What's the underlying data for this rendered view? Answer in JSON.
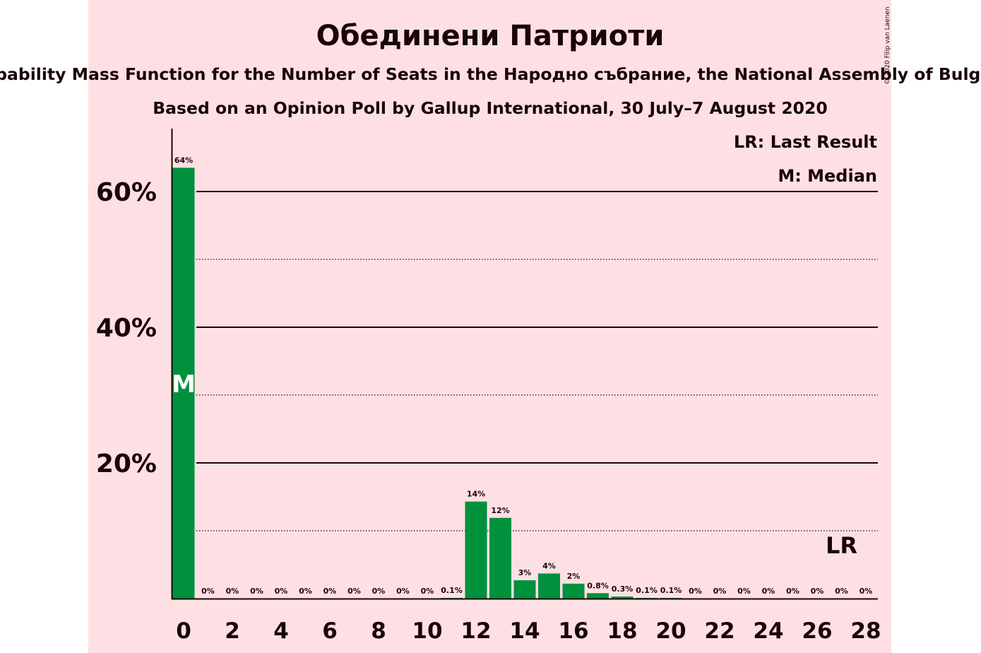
{
  "chart_data": {
    "type": "bar",
    "title": "Обединени Патриоти",
    "subtitle": "Probability Mass Function for the Number of Seats in the Народно събрание, the National Assembly of Bulgaria",
    "subtitle2": "Based on an Opinion Poll by Gallup International, 30 July–7 August 2020",
    "copyright": "© 2020 Filip van Laenen",
    "legend": {
      "last_result": "LR: Last Result",
      "median": "M: Median",
      "placement": "top-right"
    },
    "xlabel": "",
    "ylabel": "",
    "ylim": [
      0,
      70
    ],
    "y_ticks": [
      "20%",
      "40%",
      "60%"
    ],
    "x_ticks": [
      "0",
      "2",
      "4",
      "6",
      "8",
      "10",
      "12",
      "14",
      "16",
      "18",
      "20",
      "22",
      "24",
      "26",
      "28"
    ],
    "color": "#00913d",
    "median_marker": {
      "seat": 0,
      "label": "M"
    },
    "last_result_marker": {
      "seat": 27,
      "label": "LR"
    },
    "seats": [
      0,
      1,
      2,
      3,
      4,
      5,
      6,
      7,
      8,
      9,
      10,
      11,
      12,
      13,
      14,
      15,
      16,
      17,
      18,
      19,
      20,
      21,
      22,
      23,
      24,
      25,
      26,
      27,
      28
    ],
    "values": [
      63.5,
      0,
      0,
      0,
      0,
      0,
      0,
      0,
      0,
      0,
      0,
      0.1,
      14.3,
      11.9,
      2.7,
      3.7,
      2.2,
      0.8,
      0.3,
      0.1,
      0.1,
      0,
      0,
      0,
      0,
      0,
      0,
      0,
      0
    ],
    "labels": [
      "64%",
      "0%",
      "0%",
      "0%",
      "0%",
      "0%",
      "0%",
      "0%",
      "0%",
      "0%",
      "0%",
      "0.1%",
      "14%",
      "12%",
      "3%",
      "4%",
      "2%",
      "0.8%",
      "0.3%",
      "0.1%",
      "0.1%",
      "0%",
      "0%",
      "0%",
      "0%",
      "0%",
      "0%",
      "0%",
      "0%"
    ]
  }
}
